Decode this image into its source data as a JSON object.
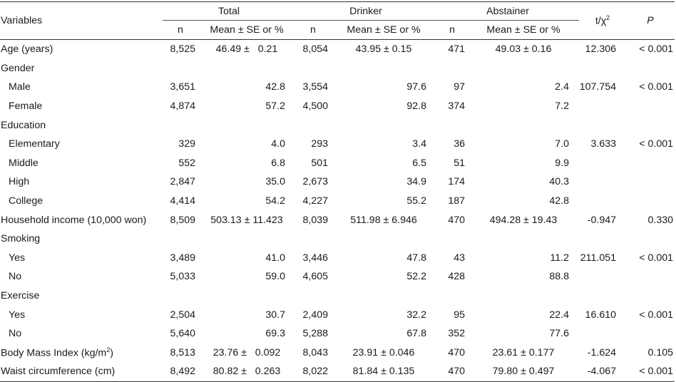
{
  "header": {
    "variables": "Variables",
    "groups": [
      "Total",
      "Drinker",
      "Abstainer"
    ],
    "n": "n",
    "mean": "Mean ± SE or %",
    "stat": "t/χ",
    "stat_sup": "2",
    "p": "P"
  },
  "rows": [
    {
      "label": "Age (years)",
      "sub": false,
      "tn": "8,525",
      "tm": "46.49 ±   0.21",
      "dn": "8,054",
      "dm": "43.95 ± 0.15",
      "an": "471",
      "am": "49.03 ± 0.16",
      "t": "12.306",
      "p": "< 0.001"
    },
    {
      "label": "Gender",
      "sub": false,
      "tn": "",
      "tm": "",
      "dn": "",
      "dm": "",
      "an": "",
      "am": "",
      "t": "",
      "p": ""
    },
    {
      "label": "Male",
      "sub": true,
      "tn": "3,651",
      "tm": "42.8",
      "dn": "3,554",
      "dm": "97.6",
      "an": "97",
      "am": "2.4",
      "t": "107.754",
      "p": "< 0.001"
    },
    {
      "label": "Female",
      "sub": true,
      "tn": "4,874",
      "tm": "57.2",
      "dn": "4,500",
      "dm": "92.8",
      "an": "374",
      "am": "7.2",
      "t": "",
      "p": ""
    },
    {
      "label": "Education",
      "sub": false,
      "tn": "",
      "tm": "",
      "dn": "",
      "dm": "",
      "an": "",
      "am": "",
      "t": "",
      "p": ""
    },
    {
      "label": "Elementary",
      "sub": true,
      "tn": "329",
      "tm": "4.0",
      "dn": "293",
      "dm": "3.4",
      "an": "36",
      "am": "7.0",
      "t": "3.633",
      "p": "< 0.001"
    },
    {
      "label": "Middle",
      "sub": true,
      "tn": "552",
      "tm": "6.8",
      "dn": "501",
      "dm": "6.5",
      "an": "51",
      "am": "9.9",
      "t": "",
      "p": ""
    },
    {
      "label": "High",
      "sub": true,
      "tn": "2,847",
      "tm": "35.0",
      "dn": "2,673",
      "dm": "34.9",
      "an": "174",
      "am": "40.3",
      "t": "",
      "p": ""
    },
    {
      "label": "College",
      "sub": true,
      "tn": "4,414",
      "tm": "54.2",
      "dn": "4,227",
      "dm": "55.2",
      "an": "187",
      "am": "42.8",
      "t": "",
      "p": ""
    },
    {
      "label": "Household income (10,000 won)",
      "sub": false,
      "tn": "8,509",
      "tm": "503.13 ± 11.423",
      "dn": "8,039",
      "dm": "511.98 ± 6.946",
      "an": "470",
      "am": "494.28 ± 19.43",
      "t": "-0.947",
      "p": "0.330"
    },
    {
      "label": "Smoking",
      "sub": false,
      "tn": "",
      "tm": "",
      "dn": "",
      "dm": "",
      "an": "",
      "am": "",
      "t": "",
      "p": ""
    },
    {
      "label": "Yes",
      "sub": true,
      "tn": "3,489",
      "tm": "41.0",
      "dn": "3,446",
      "dm": "47.8",
      "an": "43",
      "am": "11.2",
      "t": "211.051",
      "p": "< 0.001"
    },
    {
      "label": "No",
      "sub": true,
      "tn": "5,033",
      "tm": "59.0",
      "dn": "4,605",
      "dm": "52.2",
      "an": "428",
      "am": "88.8",
      "t": "",
      "p": ""
    },
    {
      "label": "Exercise",
      "sub": false,
      "tn": "",
      "tm": "",
      "dn": "",
      "dm": "",
      "an": "",
      "am": "",
      "t": "",
      "p": ""
    },
    {
      "label": "Yes",
      "sub": true,
      "tn": "2,504",
      "tm": "30.7",
      "dn": "2,409",
      "dm": "32.2",
      "an": "95",
      "am": "22.4",
      "t": "16.610",
      "p": "< 0.001"
    },
    {
      "label": "No",
      "sub": true,
      "tn": "5,640",
      "tm": "69.3",
      "dn": "5,288",
      "dm": "67.8",
      "an": "352",
      "am": "77.6",
      "t": "",
      "p": ""
    },
    {
      "label": "Body Mass Index (kg/m",
      "label_sup": "2",
      "label_end": ")",
      "sub": false,
      "tn": "8,513",
      "tm": "23.76 ±   0.092",
      "dn": "8,043",
      "dm": "23.91 ± 0.046",
      "an": "470",
      "am": "23.61 ± 0.177",
      "t": "-1.624",
      "p": "0.105"
    },
    {
      "label": "Waist circumference (cm)",
      "sub": false,
      "tn": "8,492",
      "tm": "80.82 ±   0.263",
      "dn": "8,022",
      "dm": "81.84 ± 0.135",
      "an": "470",
      "am": "79.80 ± 0.497",
      "t": "-4.067",
      "p": "< 0.001"
    }
  ]
}
